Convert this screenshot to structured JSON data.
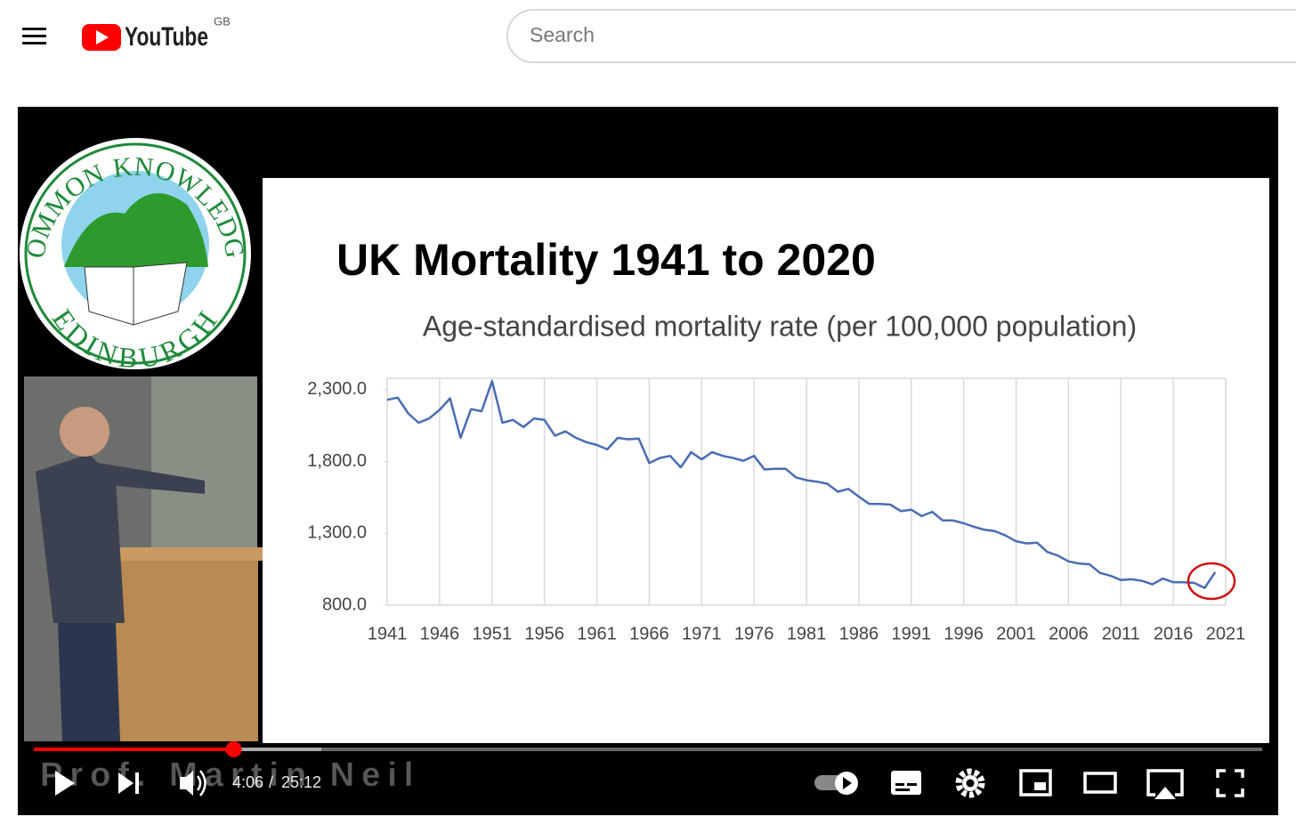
{
  "header": {
    "logo": "YouTube",
    "region": "GB",
    "search_placeholder": "Search"
  },
  "video": {
    "logo_top": "COMMON KNOWLEDGE",
    "logo_bottom": "EDINBURGH",
    "caption": "Prof. Martin Neil",
    "time_current": "4:06",
    "time_total": "25:12"
  },
  "chart_data": {
    "type": "line",
    "title": "UK Mortality 1941 to 2020",
    "subtitle": "Age-standardised mortality rate (per 100,000 population)",
    "x": [
      1941,
      1942,
      1943,
      1944,
      1945,
      1946,
      1947,
      1948,
      1949,
      1950,
      1951,
      1952,
      1953,
      1954,
      1955,
      1956,
      1957,
      1958,
      1959,
      1960,
      1961,
      1962,
      1963,
      1964,
      1965,
      1966,
      1967,
      1968,
      1969,
      1970,
      1971,
      1972,
      1973,
      1974,
      1975,
      1976,
      1977,
      1978,
      1979,
      1980,
      1981,
      1982,
      1983,
      1984,
      1985,
      1986,
      1987,
      1988,
      1989,
      1990,
      1991,
      1992,
      1993,
      1994,
      1995,
      1996,
      1997,
      1998,
      1999,
      2000,
      2001,
      2002,
      2003,
      2004,
      2005,
      2006,
      2007,
      2008,
      2009,
      2010,
      2011,
      2012,
      2013,
      2014,
      2015,
      2016,
      2017,
      2018,
      2019,
      2020
    ],
    "series": [
      {
        "name": "Age-standardised mortality rate",
        "color": "#4a6cb3",
        "values": [
          2230,
          2245,
          2135,
          2070,
          2100,
          2160,
          2240,
          1965,
          2165,
          2150,
          2360,
          2070,
          2090,
          2040,
          2100,
          2090,
          1980,
          2010,
          1965,
          1935,
          1915,
          1885,
          1965,
          1955,
          1960,
          1790,
          1825,
          1840,
          1760,
          1865,
          1815,
          1865,
          1840,
          1825,
          1805,
          1840,
          1745,
          1750,
          1750,
          1690,
          1670,
          1660,
          1645,
          1590,
          1610,
          1555,
          1505,
          1505,
          1500,
          1455,
          1465,
          1420,
          1450,
          1390,
          1390,
          1370,
          1345,
          1325,
          1315,
          1285,
          1245,
          1230,
          1235,
          1170,
          1145,
          1105,
          1090,
          1085,
          1025,
          1005,
          975,
          980,
          970,
          945,
          985,
          960,
          960,
          955,
          920,
          1030
        ]
      }
    ],
    "xlim": [
      1941,
      2021
    ],
    "xticks": [
      1941,
      1946,
      1951,
      1956,
      1961,
      1966,
      1971,
      1976,
      1981,
      1986,
      1991,
      1996,
      2001,
      2006,
      2011,
      2016,
      2021
    ],
    "ylim": [
      800,
      2380
    ],
    "yticks": [
      {
        "value": 800,
        "label": "800.0"
      },
      {
        "value": 1300,
        "label": "1,300.0"
      },
      {
        "value": 1800,
        "label": "1,800.0"
      },
      {
        "value": 2300,
        "label": "2,300.0"
      }
    ],
    "grid": "x"
  }
}
